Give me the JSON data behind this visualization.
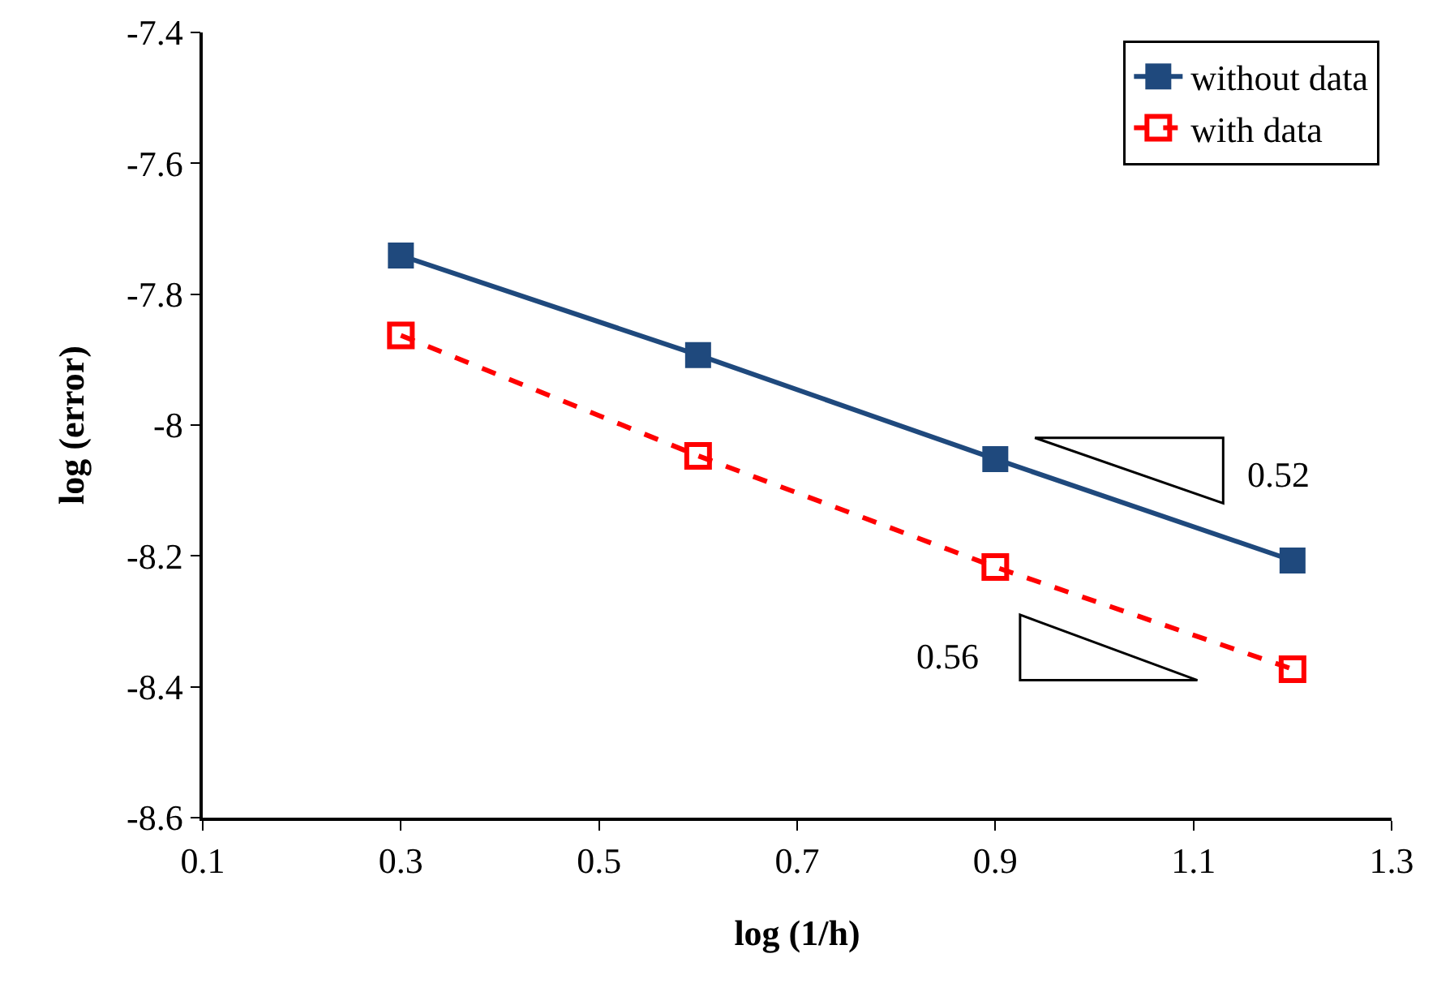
{
  "chart_data": {
    "type": "line",
    "xlabel": "log (1/h)",
    "ylabel": "log (error)",
    "x": [
      0.3,
      0.6,
      0.9,
      1.2
    ],
    "series": [
      {
        "name": "without data",
        "color": "#1f497d",
        "values": [
          -7.741,
          -7.893,
          -8.052,
          -8.207
        ],
        "line_style": "solid"
      },
      {
        "name": "with data",
        "color": "#ff0000",
        "values": [
          -7.863,
          -8.047,
          -8.217,
          -8.373
        ],
        "line_style": "dashed"
      }
    ],
    "xlim": [
      0.1,
      1.3
    ],
    "xticks": [
      0.1,
      0.3,
      0.5,
      0.7,
      0.9,
      1.1,
      1.3
    ],
    "ylim": [
      -8.6,
      -7.4
    ],
    "yticks": [
      -8.6,
      -8.4,
      -8.2,
      -8,
      -7.8,
      -7.6,
      -7.4
    ],
    "marker": "square",
    "grid": false,
    "legend": "top right",
    "annotations": [
      "0.52",
      "0.56"
    ]
  }
}
